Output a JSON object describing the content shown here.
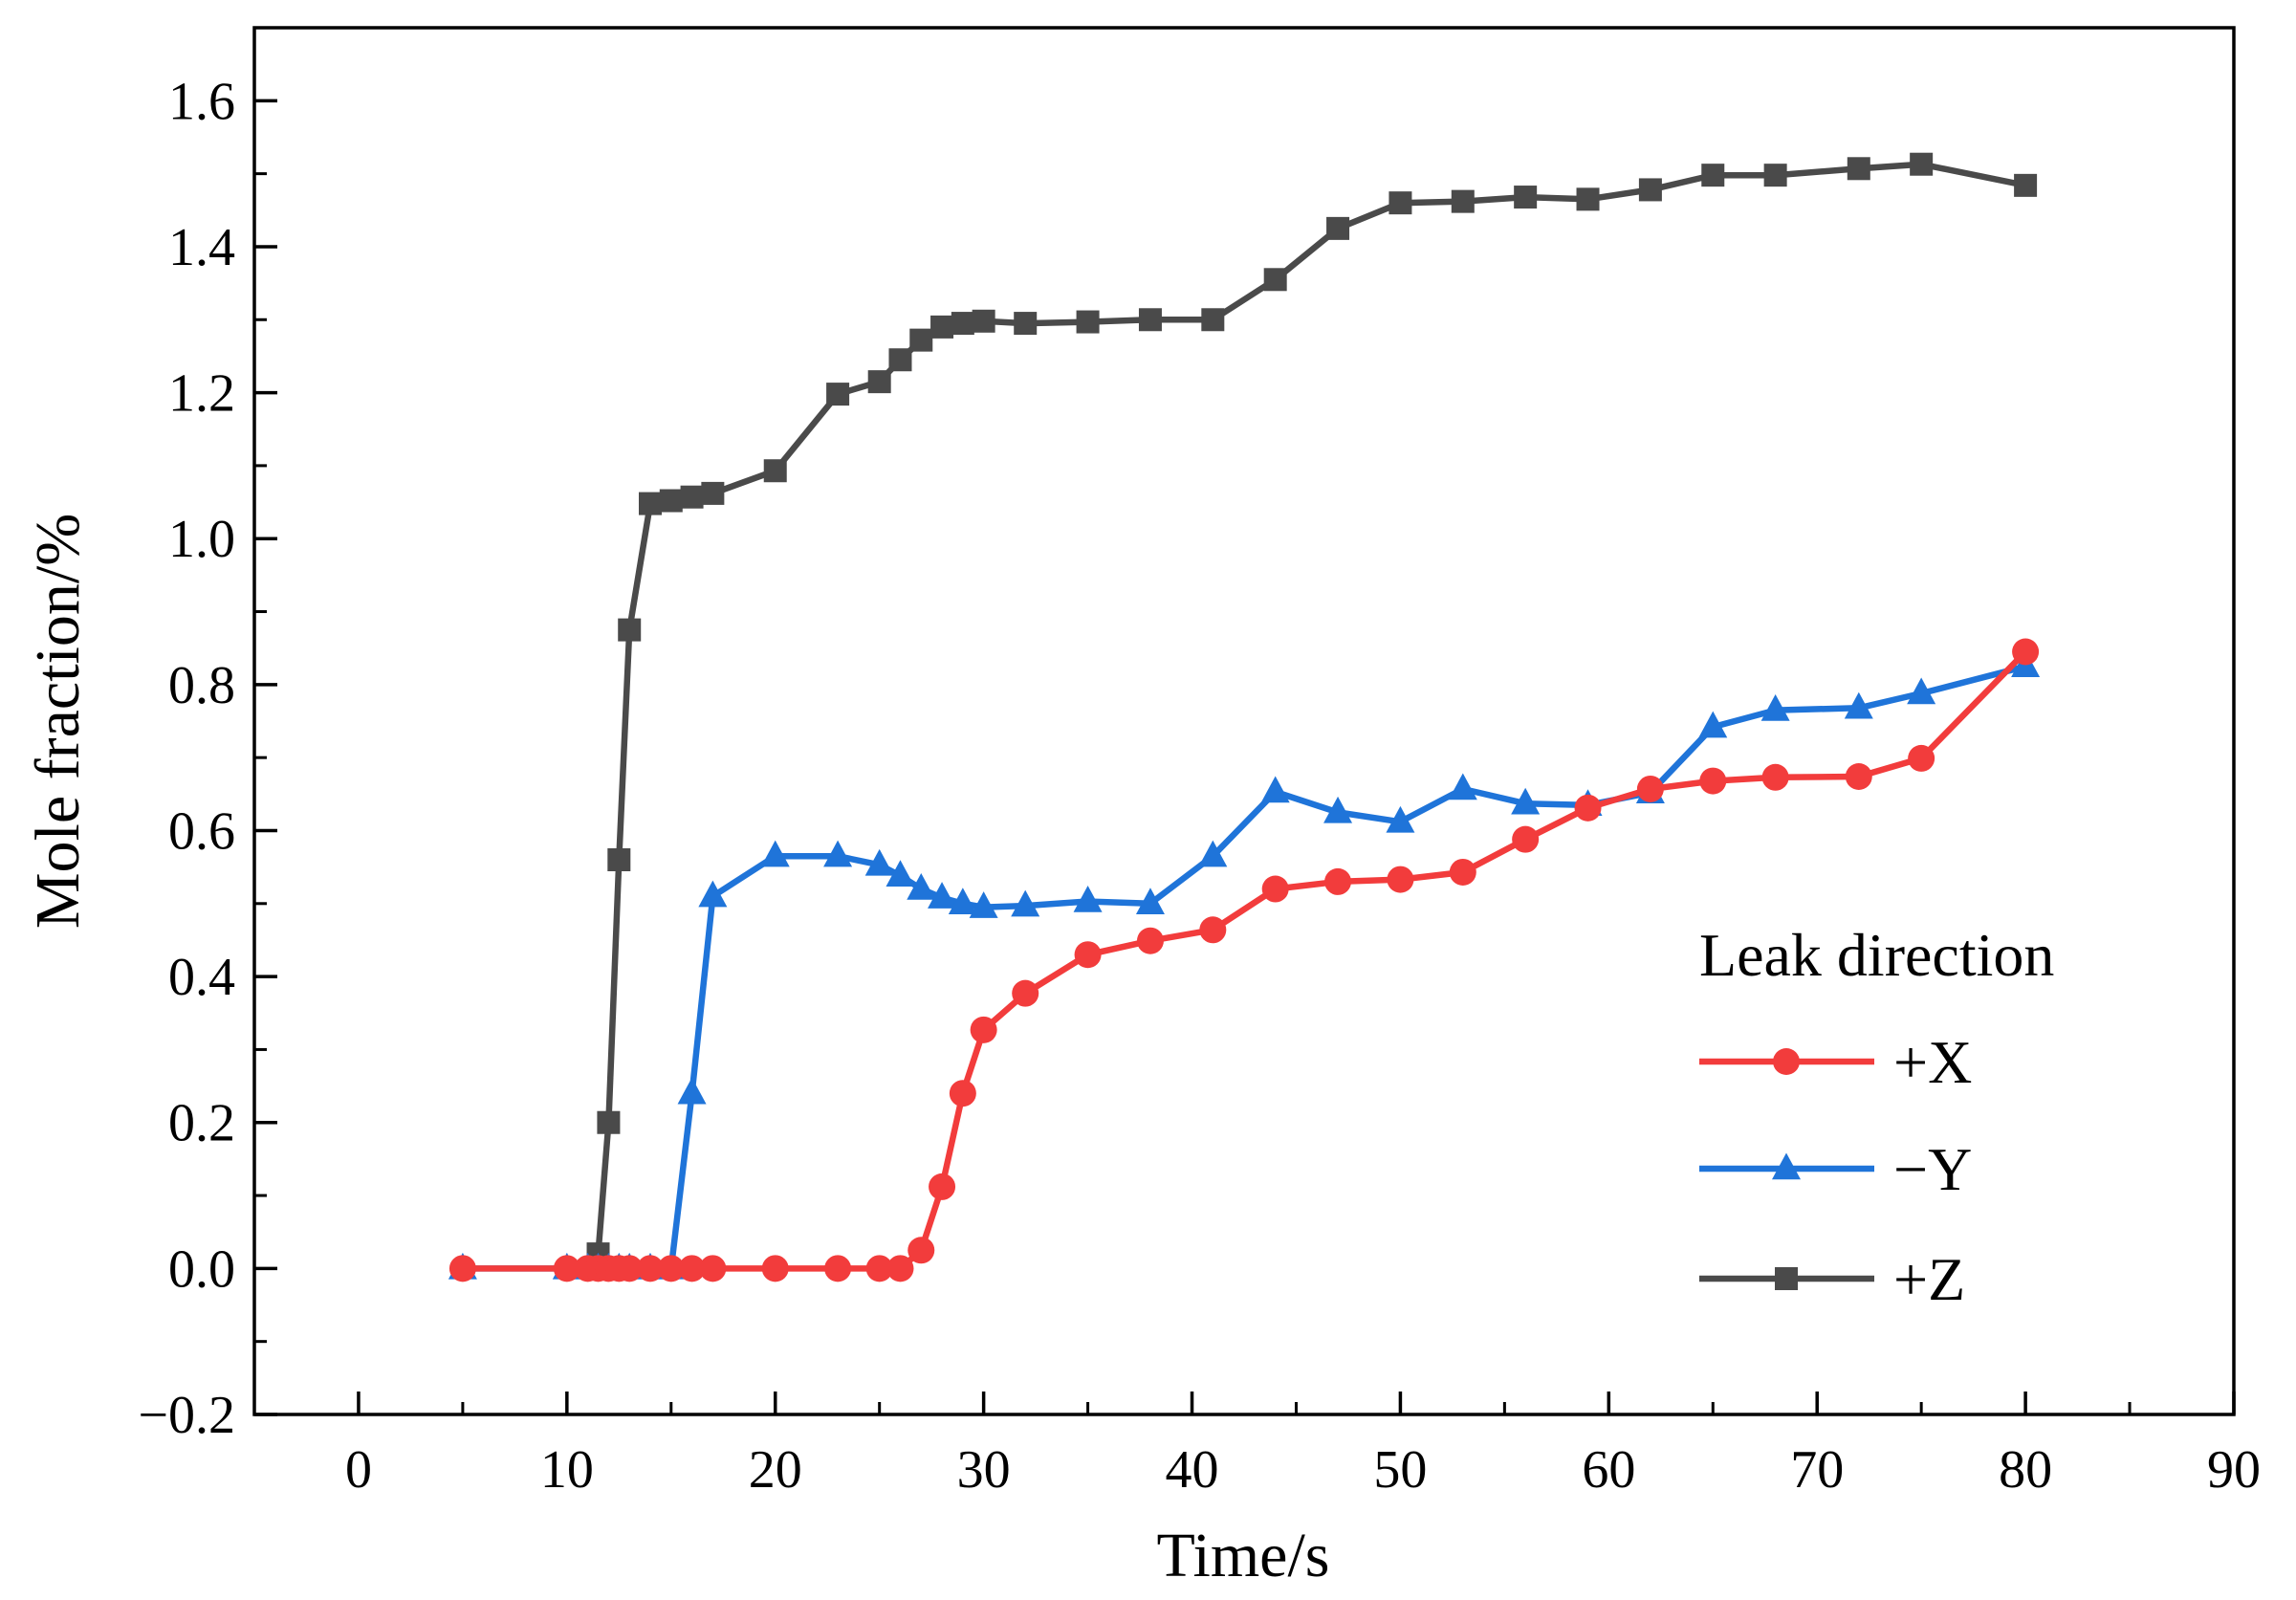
{
  "chart_data": {
    "type": "line",
    "xlabel": "Time/s",
    "ylabel": "Mole fraction/%",
    "xlim": [
      -5,
      90
    ],
    "ylim": [
      -0.2,
      1.7
    ],
    "x_ticks": [
      "0",
      "10",
      "20",
      "30",
      "40",
      "50",
      "60",
      "70",
      "80",
      "90"
    ],
    "y_ticks": [
      "−0.2",
      "0.0",
      "0.2",
      "0.4",
      "0.6",
      "0.8",
      "1.0",
      "1.2",
      "1.4",
      "1.6"
    ],
    "x_tick_values": [
      0,
      10,
      20,
      30,
      40,
      50,
      60,
      70,
      80,
      90
    ],
    "y_tick_values": [
      -0.2,
      0,
      0.2,
      0.4,
      0.6,
      0.8,
      1.0,
      1.2,
      1.4,
      1.6
    ],
    "grid": false,
    "legend": {
      "title": "Leak direction",
      "position": "bottom-right"
    },
    "series": [
      {
        "name": "+X",
        "color": "#f23c3c",
        "marker": "circle",
        "x": [
          5,
          10,
          11,
          11.5,
          12,
          12.5,
          13,
          14,
          15,
          16,
          17,
          20,
          23,
          25,
          26,
          27,
          28,
          29,
          30,
          32,
          35,
          38,
          41,
          44,
          47,
          50,
          53,
          56,
          59,
          62,
          65,
          68,
          72,
          75,
          80
        ],
        "y": [
          0,
          0,
          0,
          0,
          0,
          0,
          0,
          0,
          0,
          0,
          0,
          0,
          0,
          0,
          0,
          0.025,
          0.112,
          0.24,
          0.327,
          0.377,
          0.43,
          0.449,
          0.464,
          0.52,
          0.53,
          0.533,
          0.543,
          0.588,
          0.631,
          0.657,
          0.668,
          0.673,
          0.674,
          0.699,
          0.845
        ]
      },
      {
        "name": "−Y",
        "color": "#1f74d9",
        "marker": "triangle",
        "x": [
          5,
          10,
          11,
          11.5,
          12,
          12.5,
          13,
          14,
          15,
          16,
          17,
          20,
          23,
          25,
          26,
          27,
          28,
          29,
          30,
          32,
          35,
          38,
          41,
          44,
          47,
          50,
          53,
          56,
          59,
          62,
          65,
          68,
          72,
          75,
          80
        ],
        "y": [
          0,
          0,
          0,
          0,
          0,
          0,
          0,
          0,
          0,
          0.24,
          0.51,
          0.565,
          0.565,
          0.553,
          0.538,
          0.52,
          0.508,
          0.5,
          0.495,
          0.497,
          0.503,
          0.5,
          0.565,
          0.653,
          0.625,
          0.612,
          0.657,
          0.637,
          0.635,
          0.652,
          0.742,
          0.765,
          0.768,
          0.788,
          0.825
        ]
      },
      {
        "name": "+Z",
        "color": "#4a4a4a",
        "marker": "square",
        "x": [
          11.5,
          12,
          12.5,
          13,
          14,
          15,
          16,
          17,
          20,
          23,
          25,
          26,
          27,
          28,
          29,
          30,
          32,
          35,
          38,
          41,
          44,
          47,
          50,
          53,
          56,
          59,
          62,
          65,
          68,
          72,
          75,
          80
        ],
        "y": [
          0.02,
          0.2,
          0.56,
          0.875,
          1.048,
          1.052,
          1.057,
          1.062,
          1.093,
          1.198,
          1.215,
          1.245,
          1.272,
          1.29,
          1.295,
          1.298,
          1.295,
          1.297,
          1.3,
          1.3,
          1.355,
          1.425,
          1.46,
          1.462,
          1.468,
          1.465,
          1.478,
          1.498,
          1.498,
          1.507,
          1.513,
          1.484
        ]
      }
    ]
  }
}
